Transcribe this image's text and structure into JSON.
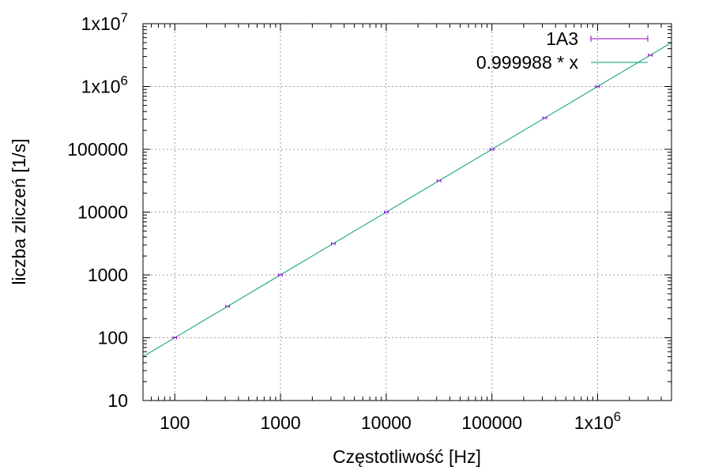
{
  "chart_data": {
    "type": "scatter",
    "title": "",
    "xlabel": "Częstotliwość [Hz]",
    "ylabel": "liczba zliczeń [1/s]",
    "x_scale": "log",
    "y_scale": "log",
    "xlim": [
      50,
      5000000
    ],
    "ylim": [
      10,
      10000000
    ],
    "grid": true,
    "legend_position": "top-right",
    "x_ticks": [
      {
        "value": 100,
        "label": "100"
      },
      {
        "value": 1000,
        "label": "1000"
      },
      {
        "value": 10000,
        "label": "10000"
      },
      {
        "value": 100000,
        "label": "100000"
      },
      {
        "value": 1000000,
        "label": "1x10",
        "exp": "6"
      }
    ],
    "y_ticks": [
      {
        "value": 10,
        "label": "10"
      },
      {
        "value": 100,
        "label": "100"
      },
      {
        "value": 1000,
        "label": "1000"
      },
      {
        "value": 10000,
        "label": "10000"
      },
      {
        "value": 100000,
        "label": "100000"
      },
      {
        "value": 1000000,
        "label": "1x10",
        "exp": "6"
      },
      {
        "value": 10000000,
        "label": "1x10",
        "exp": "7"
      }
    ],
    "series": [
      {
        "name": "1A3",
        "style": "errorbars",
        "color": "#9400d3",
        "x": [
          100,
          316,
          1000,
          3160,
          10000,
          31600,
          100000,
          316000,
          1000000,
          3160000
        ],
        "y": [
          100,
          316,
          1000,
          3160,
          10000,
          31600,
          100000,
          316000,
          1000000,
          3160000
        ],
        "x_err_rel": 0.04
      },
      {
        "name": "0.999988 * x",
        "style": "line",
        "color": "#009e73",
        "slope": 0.999988
      }
    ]
  }
}
